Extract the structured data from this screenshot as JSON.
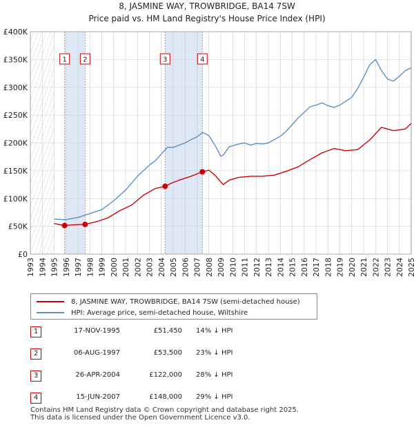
{
  "title": "8, JASMINE WAY, TROWBRIDGE, BA14 7SW",
  "subtitle": "Price paid vs. HM Land Registry's House Price Index (HPI)",
  "colors": {
    "property": "#cc0000",
    "hpi": "#5b8fc7",
    "shade": "#dfe8f6",
    "grid": "#cccccc",
    "vline": "#e06666"
  },
  "chart_data": {
    "type": "line",
    "y_ticks": [
      "£0",
      "£50K",
      "£100K",
      "£150K",
      "£200K",
      "£250K",
      "£300K",
      "£350K",
      "£400K"
    ],
    "x_ticks": [
      "1993",
      "1994",
      "1995",
      "1996",
      "1997",
      "1998",
      "1999",
      "2000",
      "2001",
      "2002",
      "2003",
      "2004",
      "2005",
      "2006",
      "2007",
      "2008",
      "2009",
      "2010",
      "2011",
      "2012",
      "2013",
      "2014",
      "2015",
      "2016",
      "2017",
      "2018",
      "2019",
      "2020",
      "2021",
      "2022",
      "2023",
      "2024",
      "2025"
    ],
    "xlim": [
      1993,
      2025
    ],
    "ylim": [
      0,
      400000
    ],
    "series": [
      {
        "name": "8, JASMINE WAY, TROWBRIDGE, BA14 7SW (semi-detached house)",
        "x": [
          1995.0,
          1995.88,
          1996.5,
          1997.0,
          1997.6,
          1998.5,
          1999.5,
          2000.5,
          2001.5,
          2002.5,
          2003.5,
          2004.32,
          2004.8,
          2005.5,
          2006.5,
          2007.45,
          2008.0,
          2008.5,
          2009.2,
          2009.7,
          2010.5,
          2011.5,
          2012.5,
          2013.5,
          2014.5,
          2015.5,
          2016.5,
          2017.5,
          2018.5,
          2019.5,
          2020.5,
          2021.5,
          2022.5,
          2023.5,
          2024.5,
          2025.0
        ],
        "values": [
          55000,
          51450,
          52500,
          53000,
          53500,
          58000,
          65000,
          78000,
          88000,
          106000,
          118000,
          122000,
          127000,
          133000,
          140000,
          148000,
          151000,
          142000,
          125000,
          133000,
          138000,
          140000,
          140000,
          142000,
          149000,
          157000,
          170000,
          182000,
          190000,
          186000,
          188000,
          205000,
          228000,
          222000,
          225000,
          235000
        ]
      },
      {
        "name": "HPI: Average price, semi-detached house, Wiltshire",
        "x": [
          1995.0,
          1996.0,
          1997.0,
          1998.0,
          1999.0,
          2000.0,
          2001.0,
          2002.0,
          2003.0,
          2003.5,
          2004.0,
          2004.5,
          2005.0,
          2005.5,
          2006.0,
          2006.5,
          2007.0,
          2007.5,
          2008.0,
          2008.5,
          2009.0,
          2009.2,
          2009.7,
          2010.5,
          2011.0,
          2011.5,
          2012.0,
          2012.5,
          2013.0,
          2013.5,
          2014.0,
          2014.5,
          2015.0,
          2015.5,
          2016.0,
          2016.5,
          2017.0,
          2017.5,
          2018.0,
          2018.5,
          2019.0,
          2019.5,
          2020.0,
          2020.5,
          2021.0,
          2021.5,
          2022.0,
          2022.5,
          2023.0,
          2023.5,
          2024.0,
          2024.5,
          2025.0
        ],
        "values": [
          63000,
          62000,
          66000,
          73000,
          80000,
          96000,
          115000,
          140000,
          160000,
          168000,
          180000,
          192000,
          192000,
          196000,
          200000,
          206000,
          211000,
          219000,
          213000,
          196000,
          176000,
          178000,
          193000,
          198000,
          200000,
          196000,
          199000,
          198000,
          200000,
          206000,
          212000,
          221000,
          233000,
          245000,
          255000,
          265000,
          268000,
          272000,
          267000,
          264000,
          268000,
          275000,
          282000,
          298000,
          318000,
          340000,
          350000,
          330000,
          315000,
          311000,
          320000,
          330000,
          335000
        ]
      }
    ],
    "transactions": [
      {
        "num": "1",
        "year": 1995.88,
        "value": 51450
      },
      {
        "num": "2",
        "year": 1997.6,
        "value": 53500
      },
      {
        "num": "3",
        "year": 2004.32,
        "value": 122000
      },
      {
        "num": "4",
        "year": 2007.45,
        "value": 148000
      }
    ]
  },
  "legend": {
    "property": "8, JASMINE WAY, TROWBRIDGE, BA14 7SW (semi-detached house)",
    "hpi": "HPI: Average price, semi-detached house, Wiltshire"
  },
  "table": [
    {
      "num": "1",
      "date": "17-NOV-1995",
      "price": "£51,450",
      "hpi": "14% ↓ HPI"
    },
    {
      "num": "2",
      "date": "06-AUG-1997",
      "price": "£53,500",
      "hpi": "23% ↓ HPI"
    },
    {
      "num": "3",
      "date": "26-APR-2004",
      "price": "£122,000",
      "hpi": "28% ↓ HPI"
    },
    {
      "num": "4",
      "date": "15-JUN-2007",
      "price": "£148,000",
      "hpi": "29% ↓ HPI"
    }
  ],
  "footer": {
    "line1": "Contains HM Land Registry data © Crown copyright and database right 2025.",
    "line2": "This data is licensed under the Open Government Licence v3.0."
  }
}
